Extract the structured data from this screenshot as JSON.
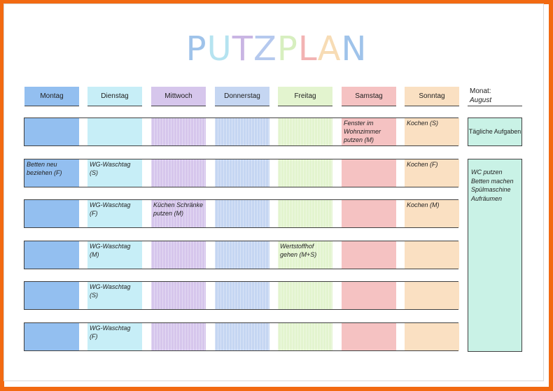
{
  "title": {
    "letters": [
      {
        "ch": "P",
        "color": "#9fc3ea"
      },
      {
        "ch": "U",
        "color": "#b5e3f0"
      },
      {
        "ch": "T",
        "color": "#c9b5e3"
      },
      {
        "ch": "Z",
        "color": "#b5c9ee"
      },
      {
        "ch": "P",
        "color": "#d7efbf"
      },
      {
        "ch": "L",
        "color": "#f2b3b3"
      },
      {
        "ch": "A",
        "color": "#f7dcb5"
      },
      {
        "ch": "N",
        "color": "#9fc3ea"
      }
    ]
  },
  "days": [
    {
      "label": "Montag",
      "color": "#93bff0"
    },
    {
      "label": "Dienstag",
      "color": "#c7eef7"
    },
    {
      "label": "Mittwoch",
      "color": "#d6c6ec"
    },
    {
      "label": "Donnerstag",
      "color": "#c5d6f2"
    },
    {
      "label": "Freitag",
      "color": "#e3f4cf"
    },
    {
      "label": "Samstag",
      "color": "#f5c2c2"
    },
    {
      "label": "Sonntag",
      "color": "#fae0c2"
    }
  ],
  "month": {
    "label": "Monat:",
    "value": "August"
  },
  "rows": [
    [
      "",
      "",
      "",
      "",
      "",
      "Fenster im Wohnzimmer putzen (M)",
      "Kochen (S)"
    ],
    [
      "Betten neu beziehen (F)",
      "WG-Waschtag (S)",
      "",
      "",
      "",
      "",
      "Kochen (F)"
    ],
    [
      "",
      "WG-Waschtag (F)",
      "Küchen Schränke putzen (M)",
      "",
      "",
      "",
      "Kochen (M)"
    ],
    [
      "",
      "WG-Waschtag (M)",
      "",
      "",
      "Wertstoffhof gehen (M+S)",
      "",
      ""
    ],
    [
      "",
      "WG-Waschtag (S)",
      "",
      "",
      "",
      "",
      ""
    ],
    [
      "",
      "WG-Waschtag (F)",
      "",
      "",
      "",
      "",
      ""
    ]
  ],
  "daily": {
    "label": "Tägliche Aufgaben"
  },
  "tasks": [
    "WC putzen",
    "Betten machen",
    "Spülmaschine",
    "Aufräumen"
  ]
}
